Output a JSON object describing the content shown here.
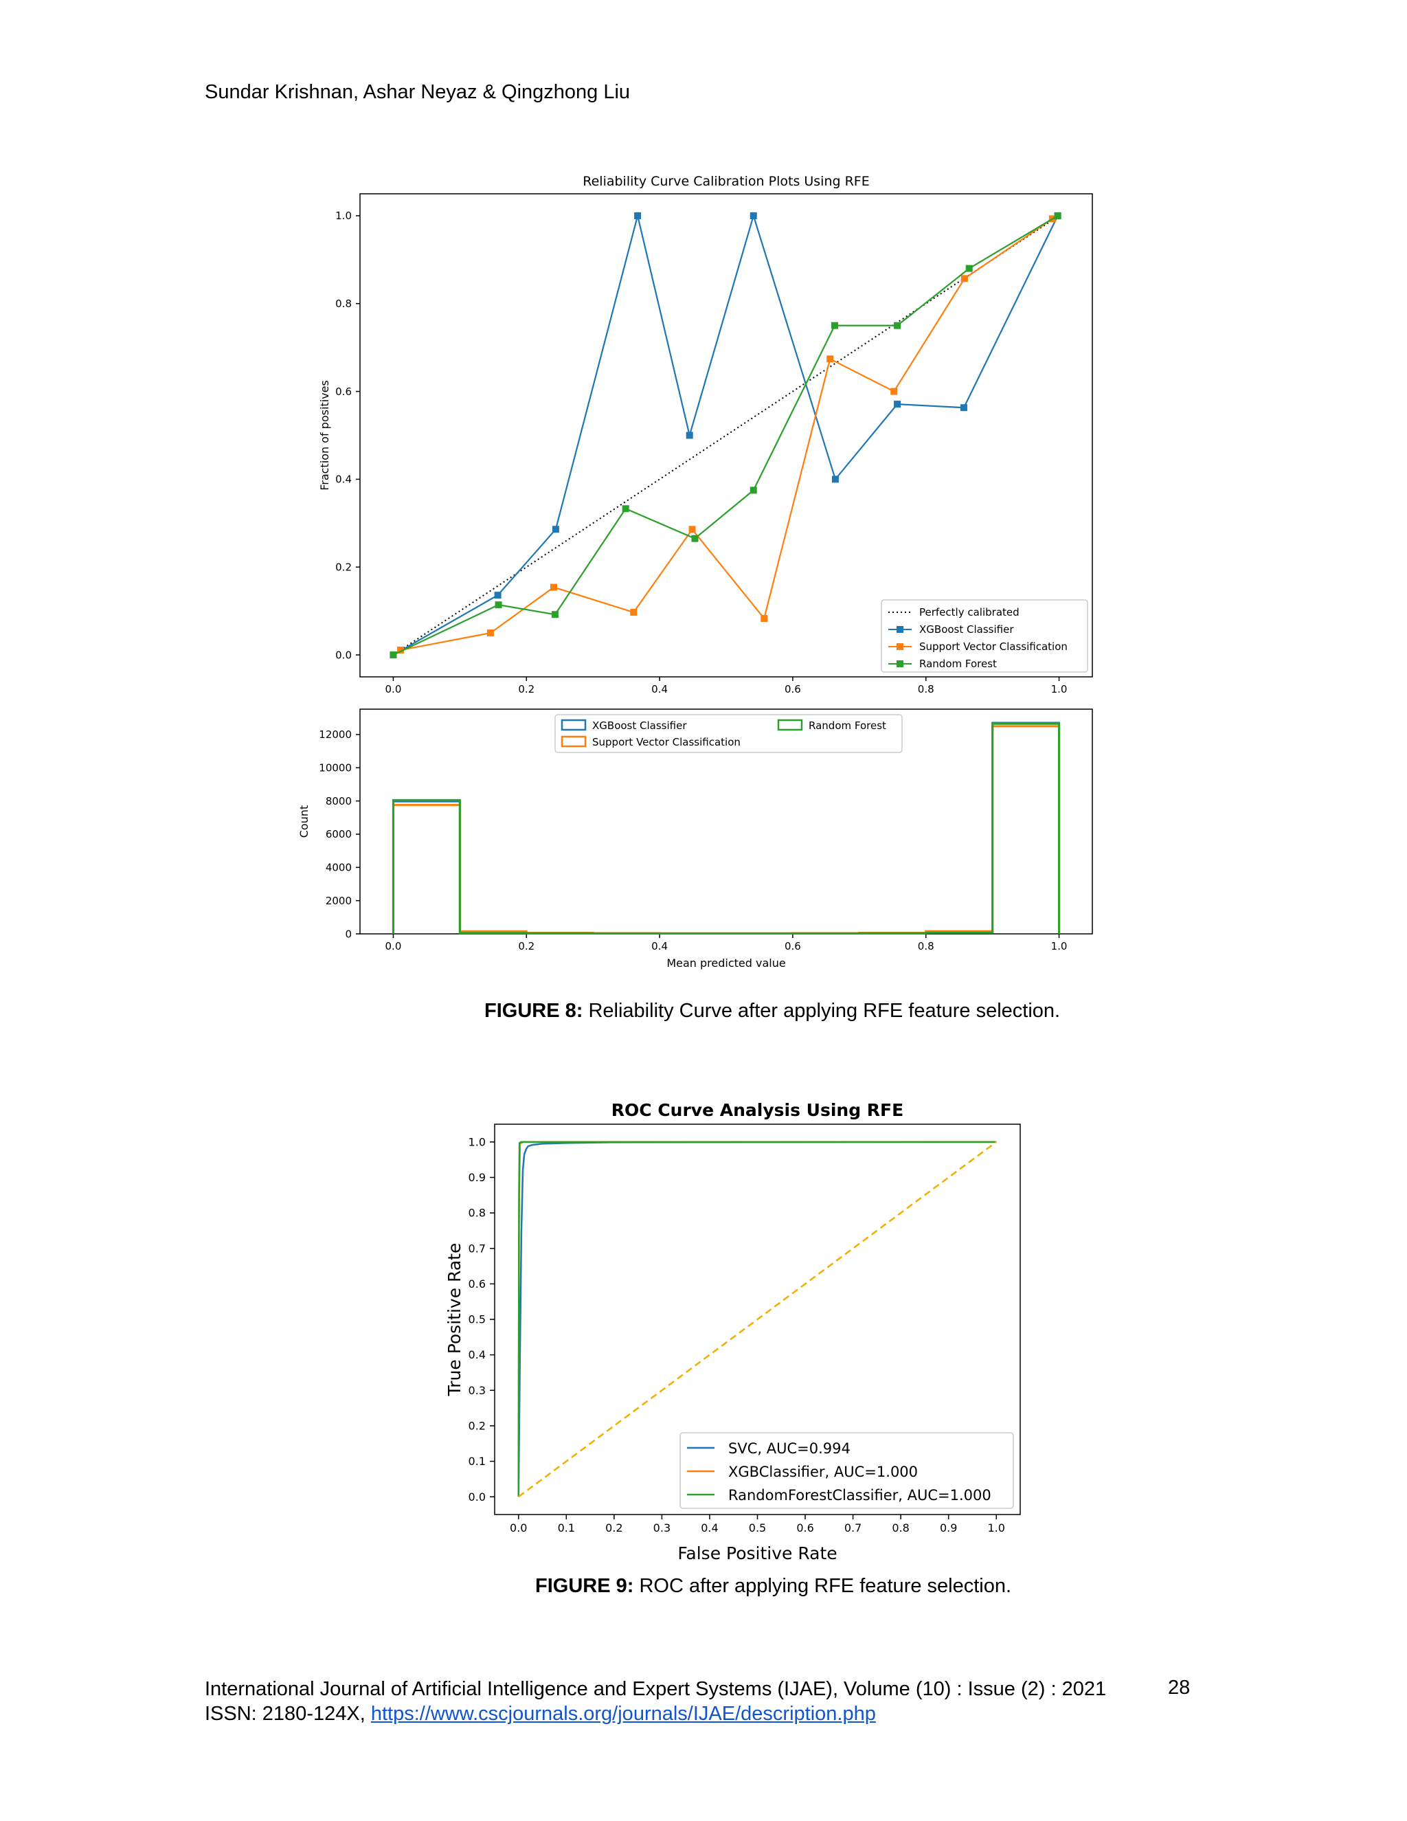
{
  "header": {
    "authors": "Sundar Krishnan, Ashar Neyaz & Qingzhong Liu"
  },
  "figure8": {
    "caption_label": "FIGURE 8:",
    "caption_text": " Reliability Curve after applying RFE feature selection."
  },
  "figure9": {
    "caption_label": "FIGURE 9:",
    "caption_text": " ROC after applying RFE feature selection."
  },
  "footer": {
    "journal": "International Journal of Artificial Intelligence and Expert Systems (IJAE), Volume (10) : Issue (2) : 2021",
    "issn_prefix": "ISSN: 2180-124X, ",
    "link": "https://www.cscjournals.org/journals/IJAE/description.php",
    "page_number": "28"
  },
  "colors": {
    "blue": "#1f77b4",
    "orange": "#ff7f0e",
    "green": "#2ca02c",
    "gold": "#f0b000"
  },
  "chart_data": [
    {
      "type": "line",
      "title": "Reliability Curve Calibration Plots Using RFE",
      "xlabel": "",
      "ylabel": "Fraction of positives",
      "xlim": [
        -0.05,
        1.05
      ],
      "ylim": [
        -0.05,
        1.05
      ],
      "xticks": [
        "0.0",
        "0.2",
        "0.4",
        "0.6",
        "0.8",
        "1.0"
      ],
      "yticks": [
        "0.0",
        "0.2",
        "0.4",
        "0.6",
        "0.8",
        "1.0"
      ],
      "legend_position": "lower-right",
      "series": [
        {
          "name": "Perfectly calibrated",
          "color": "#000000",
          "style": "dotted",
          "marker": "none",
          "x": [
            0,
            1
          ],
          "y": [
            0,
            1
          ]
        },
        {
          "name": "XGBoost Classifier",
          "color": "#1f77b4",
          "style": "solid",
          "marker": "square",
          "x": [
            0.0,
            0.157,
            0.244,
            0.367,
            0.445,
            0.541,
            0.664,
            0.757,
            0.857,
            0.998
          ],
          "y": [
            0.0,
            0.136,
            0.286,
            1.0,
            0.5,
            1.0,
            0.4,
            0.571,
            0.563,
            1.0
          ]
        },
        {
          "name": "Support Vector Classification",
          "color": "#ff7f0e",
          "style": "solid",
          "marker": "square",
          "x": [
            0.011,
            0.146,
            0.241,
            0.361,
            0.449,
            0.557,
            0.656,
            0.752,
            0.858,
            0.99
          ],
          "y": [
            0.011,
            0.05,
            0.154,
            0.097,
            0.286,
            0.083,
            0.674,
            0.6,
            0.857,
            0.993
          ]
        },
        {
          "name": "Random Forest",
          "color": "#2ca02c",
          "style": "solid",
          "marker": "square",
          "x": [
            0.0,
            0.158,
            0.243,
            0.349,
            0.453,
            0.541,
            0.663,
            0.757,
            0.865,
            0.998
          ],
          "y": [
            0.0,
            0.114,
            0.092,
            0.333,
            0.265,
            0.375,
            0.75,
            0.75,
            0.88,
            1.0
          ]
        }
      ]
    },
    {
      "type": "bar",
      "title": "",
      "xlabel": "Mean predicted value",
      "ylabel": "Count",
      "xlim": [
        -0.05,
        1.05
      ],
      "ylim": [
        0,
        13000
      ],
      "xticks": [
        "0.0",
        "0.2",
        "0.4",
        "0.6",
        "0.8",
        "1.0"
      ],
      "yticks": [
        "0",
        "2000",
        "4000",
        "6000",
        "8000",
        "10000",
        "12000"
      ],
      "legend_position": "top-center",
      "bin_edges": [
        0.0,
        0.1,
        0.2,
        0.3,
        0.4,
        0.5,
        0.6,
        0.7,
        0.8,
        0.9,
        1.0
      ],
      "series": [
        {
          "name": "XGBoost Classifier",
          "color": "#1f77b4",
          "values": [
            7980,
            60,
            40,
            30,
            25,
            25,
            30,
            40,
            80,
            12700
          ]
        },
        {
          "name": "Support Vector Classification",
          "color": "#ff7f0e",
          "values": [
            7760,
            150,
            60,
            40,
            30,
            30,
            40,
            60,
            160,
            12500
          ]
        },
        {
          "name": "Random Forest",
          "color": "#2ca02c",
          "values": [
            8050,
            50,
            35,
            25,
            20,
            20,
            25,
            35,
            70,
            12650
          ]
        }
      ]
    },
    {
      "type": "line",
      "title": "ROC Curve Analysis Using RFE",
      "xlabel": "False Positive Rate",
      "ylabel": "True Positive Rate",
      "xlim": [
        -0.05,
        1.05
      ],
      "ylim": [
        -0.05,
        1.05
      ],
      "xticks": [
        "0.0",
        "0.1",
        "0.2",
        "0.3",
        "0.4",
        "0.5",
        "0.6",
        "0.7",
        "0.8",
        "0.9",
        "1.0"
      ],
      "yticks": [
        "0.0",
        "0.1",
        "0.2",
        "0.3",
        "0.4",
        "0.5",
        "0.6",
        "0.7",
        "0.8",
        "0.9",
        "1.0"
      ],
      "legend_position": "lower-right",
      "series": [
        {
          "name": "SVC, AUC=0.994",
          "color": "#1f77b4",
          "x": [
            0,
            0.003,
            0.006,
            0.009,
            0.012,
            0.016,
            0.02,
            0.03,
            0.05,
            0.1,
            0.2,
            1.0
          ],
          "y": [
            0,
            0.4,
            0.75,
            0.92,
            0.965,
            0.98,
            0.988,
            0.992,
            0.995,
            0.997,
            0.999,
            1.0
          ]
        },
        {
          "name": "XGBClassifier, AUC=1.000",
          "color": "#ff7f0e",
          "x": [
            0,
            0.001,
            0.003,
            0.01,
            1.0
          ],
          "y": [
            0,
            0.8,
            0.995,
            1.0,
            1.0
          ]
        },
        {
          "name": "RandomForestClassifier, AUC=1.000",
          "color": "#2ca02c",
          "x": [
            0,
            0.001,
            0.002,
            0.005,
            1.0
          ],
          "y": [
            0,
            0.85,
            0.997,
            1.0,
            1.0
          ]
        },
        {
          "name": "",
          "color": "#f0b000",
          "style": "dashed",
          "x": [
            0,
            1
          ],
          "y": [
            0,
            1
          ]
        }
      ]
    }
  ]
}
